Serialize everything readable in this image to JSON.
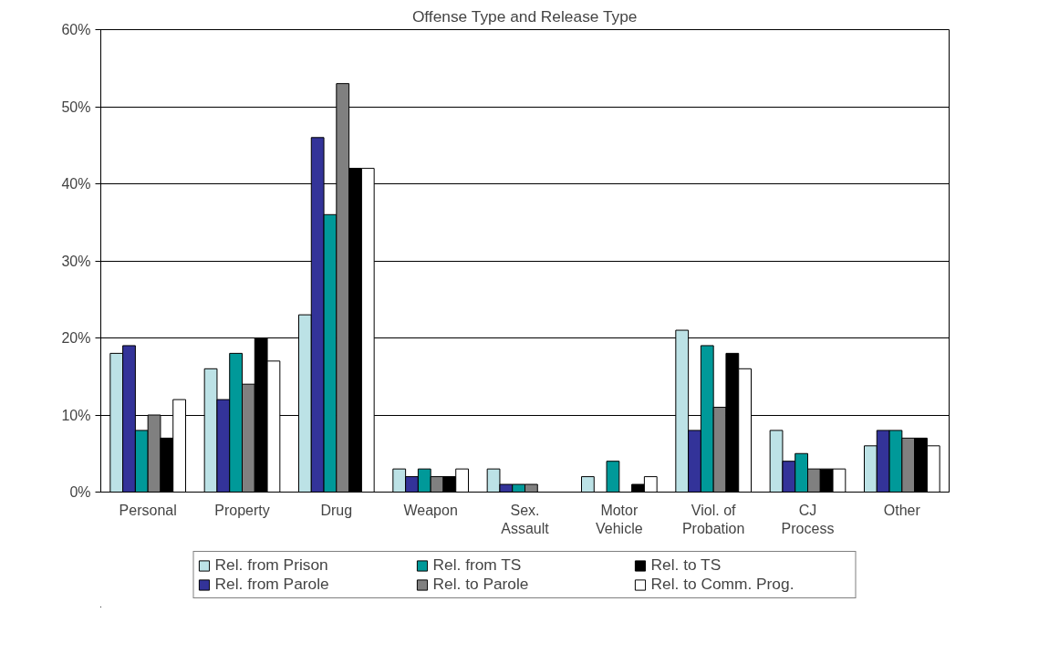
{
  "chart_data": {
    "type": "bar",
    "title": "Offense Type and Release Type",
    "categories": [
      "Personal",
      "Property",
      "Drug",
      "Weapon",
      "Sex.\nAssault",
      "Motor\nVehicle",
      "Viol. of\nProbation",
      "CJ\nProcess",
      "Other"
    ],
    "series": [
      {
        "name": "Rel. from Prison",
        "color": "#bce2e6",
        "values": [
          18,
          16,
          23,
          3,
          3,
          2,
          21,
          8,
          6
        ]
      },
      {
        "name": "Rel. from Parole",
        "color": "#333399",
        "values": [
          19,
          12,
          46,
          2,
          1,
          0,
          8,
          4,
          8
        ]
      },
      {
        "name": "Rel. from TS",
        "color": "#009999",
        "values": [
          8,
          18,
          36,
          3,
          1,
          4,
          19,
          5,
          8
        ]
      },
      {
        "name": "Rel. to Parole",
        "color": "#808080",
        "values": [
          10,
          14,
          53,
          2,
          1,
          0,
          11,
          3,
          7
        ]
      },
      {
        "name": "Rel. to TS",
        "color": "#000000",
        "values": [
          7,
          20,
          42,
          2,
          0,
          1,
          18,
          3,
          7
        ]
      },
      {
        "name": "Rel. to Comm. Prog.",
        "color": "#ffffff",
        "values": [
          12,
          17,
          42,
          3,
          0,
          2,
          16,
          3,
          6
        ]
      }
    ],
    "ylim": [
      0,
      60
    ],
    "yticks": [
      {
        "value": 0,
        "label": "0%"
      },
      {
        "value": 10,
        "label": "10%"
      },
      {
        "value": 20,
        "label": "20%"
      },
      {
        "value": 30,
        "label": "30%"
      },
      {
        "value": 40,
        "label": "40%"
      },
      {
        "value": 50,
        "label": "50%"
      },
      {
        "value": 60,
        "label": "60%"
      }
    ],
    "grid": "y",
    "legend": "bottom"
  }
}
